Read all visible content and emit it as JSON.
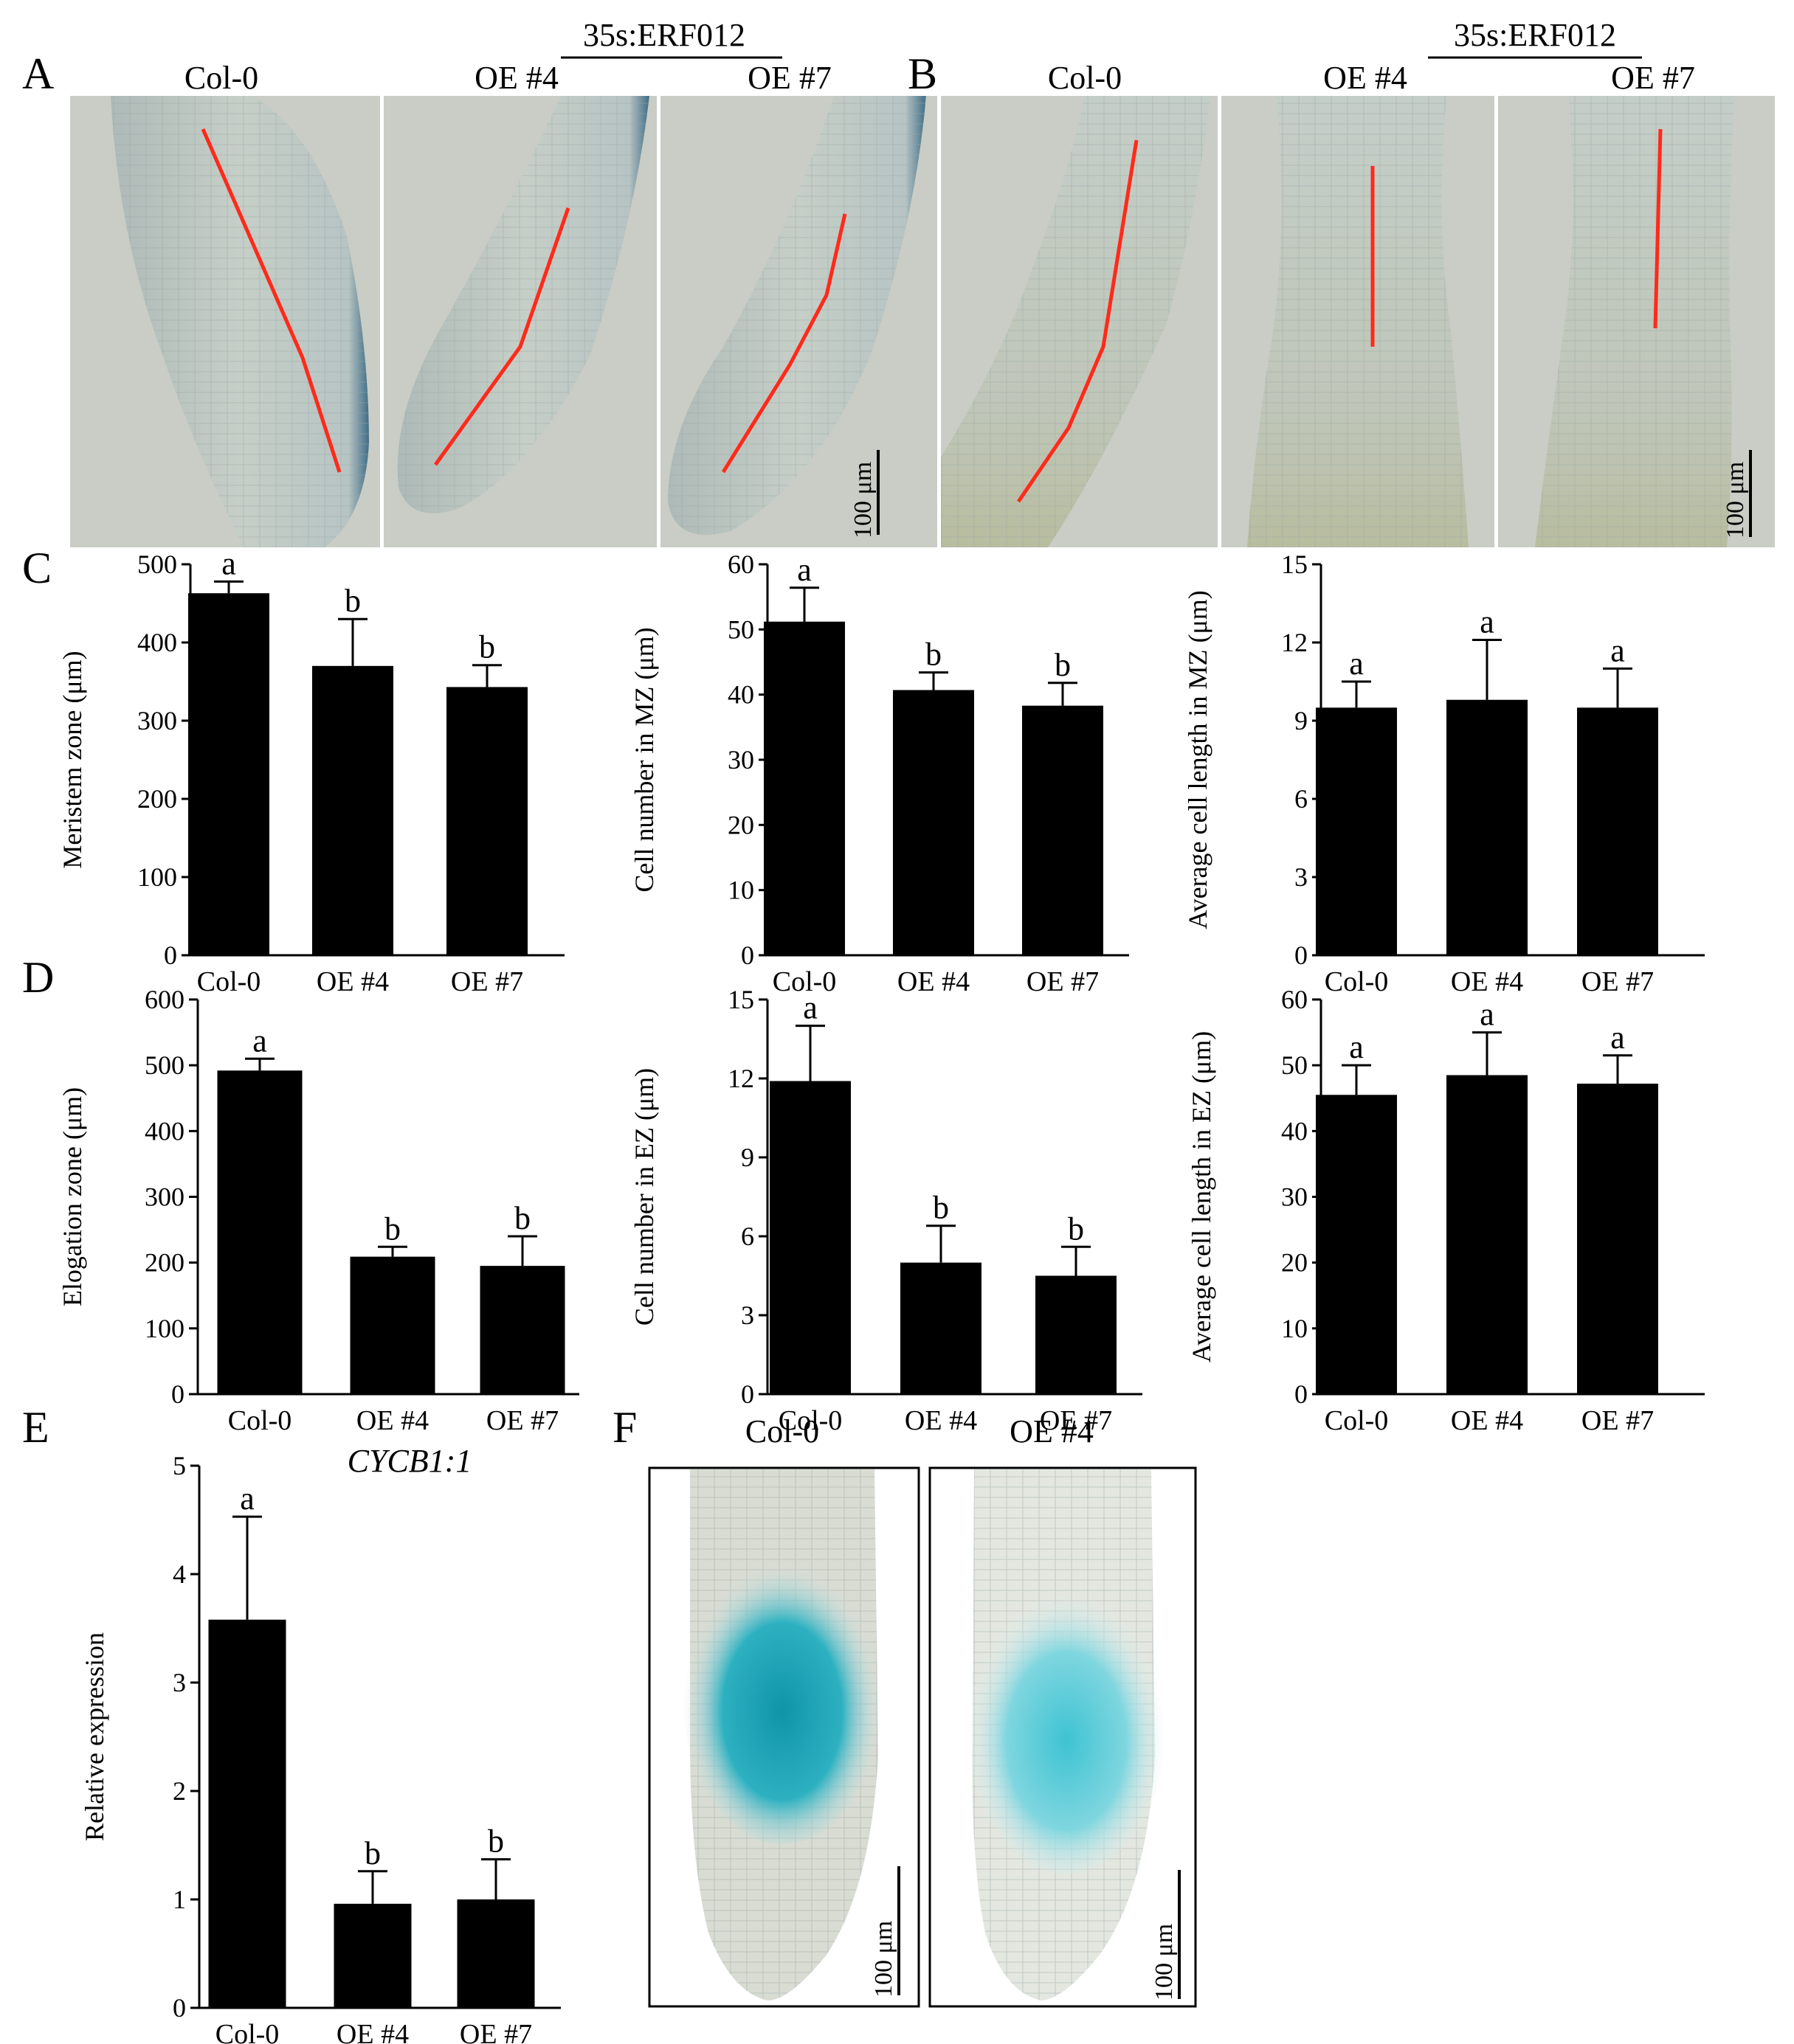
{
  "panel_letters": {
    "A": "A",
    "B": "B",
    "C": "C",
    "D": "D",
    "E": "E",
    "F": "F"
  },
  "micrographs": {
    "A": {
      "group_label": "35s:ERF012",
      "labels": [
        "Col-0",
        "OE #4",
        "OE #7"
      ],
      "scale_bar": "100 μm"
    },
    "B": {
      "group_label": "35s:ERF012",
      "labels": [
        "Col-0",
        "OE #4",
        "OE #7"
      ],
      "scale_bar": "100 μm"
    },
    "F": {
      "labels": [
        "Col-0",
        "OE #4"
      ],
      "scale_bar": "100 μm"
    }
  },
  "colors": {
    "bar": "#000000",
    "annotation_line": "#ff2a1a",
    "micrograph_bg": "#c9cdc5",
    "root_tissue": "#b7c2c0",
    "gus_stain": "#1aa6b8"
  },
  "chart_data": [
    {
      "panel": "C",
      "type": "bar",
      "categories": [
        "Col-0",
        "OE #4",
        "OE #7"
      ],
      "values": [
        463,
        370,
        343
      ],
      "errors": [
        15,
        60,
        28
      ],
      "letters": [
        "a",
        "b",
        "b"
      ],
      "ylabel": "Meristem zone (μm)",
      "ylim": [
        0,
        500
      ],
      "yticks": [
        0,
        100,
        200,
        300,
        400,
        500
      ],
      "title": "",
      "italic_title": false
    },
    {
      "panel": "C",
      "type": "bar",
      "categories": [
        "Col-0",
        "OE #4",
        "OE #7"
      ],
      "values": [
        51.2,
        40.7,
        38.3
      ],
      "errors": [
        5.2,
        2.7,
        3.5
      ],
      "letters": [
        "a",
        "b",
        "b"
      ],
      "ylabel": "Cell number in MZ (μm)",
      "ylim": [
        0,
        60
      ],
      "yticks": [
        0,
        10,
        20,
        30,
        40,
        50,
        60
      ],
      "title": "",
      "italic_title": false
    },
    {
      "panel": "C",
      "type": "bar",
      "categories": [
        "Col-0",
        "OE #4",
        "OE #7"
      ],
      "values": [
        9.5,
        9.8,
        9.5
      ],
      "errors": [
        1.0,
        2.3,
        1.5
      ],
      "letters": [
        "a",
        "a",
        "a"
      ],
      "ylabel": "Average cell length in MZ (μm)",
      "ylim": [
        0,
        15
      ],
      "yticks": [
        0,
        3,
        6,
        9,
        12,
        15
      ],
      "title": "",
      "italic_title": false
    },
    {
      "panel": "D",
      "type": "bar",
      "categories": [
        "Col-0",
        "OE #4",
        "OE #7"
      ],
      "values": [
        492,
        209,
        195
      ],
      "errors": [
        18,
        15,
        45
      ],
      "letters": [
        "a",
        "b",
        "b"
      ],
      "ylabel": "Elogation zone (μm)",
      "ylim": [
        0,
        600
      ],
      "yticks": [
        0,
        100,
        200,
        300,
        400,
        500,
        600
      ],
      "title": "",
      "italic_title": false
    },
    {
      "panel": "D",
      "type": "bar",
      "categories": [
        "Col-0",
        "OE #4",
        "OE #7"
      ],
      "values": [
        11.9,
        5.0,
        4.5
      ],
      "errors": [
        2.1,
        1.4,
        1.1
      ],
      "letters": [
        "a",
        "b",
        "b"
      ],
      "ylabel": "Cell number in EZ (μm)",
      "ylim": [
        0,
        15
      ],
      "yticks": [
        0,
        3,
        6,
        9,
        12,
        15
      ],
      "title": "",
      "italic_title": false
    },
    {
      "panel": "D",
      "type": "bar",
      "categories": [
        "Col-0",
        "OE #4",
        "OE #7"
      ],
      "values": [
        45.5,
        48.5,
        47.2
      ],
      "errors": [
        4.5,
        6.5,
        4.3
      ],
      "letters": [
        "a",
        "a",
        "a"
      ],
      "ylabel": "Average cell length in EZ (μm)",
      "ylim": [
        0,
        60
      ],
      "yticks": [
        0,
        10,
        20,
        30,
        40,
        50,
        60
      ],
      "title": "",
      "italic_title": false
    },
    {
      "panel": "E",
      "type": "bar",
      "categories": [
        "Col-0",
        "OE #4",
        "OE #7"
      ],
      "values": [
        3.58,
        0.96,
        1.0
      ],
      "errors": [
        0.95,
        0.3,
        0.37
      ],
      "letters": [
        "a",
        "b",
        "b"
      ],
      "ylabel": "Relative expression",
      "ylim": [
        0,
        5
      ],
      "yticks": [
        0,
        1,
        2,
        3,
        4,
        5
      ],
      "title": "CYCB1:1",
      "italic_title": true
    }
  ]
}
